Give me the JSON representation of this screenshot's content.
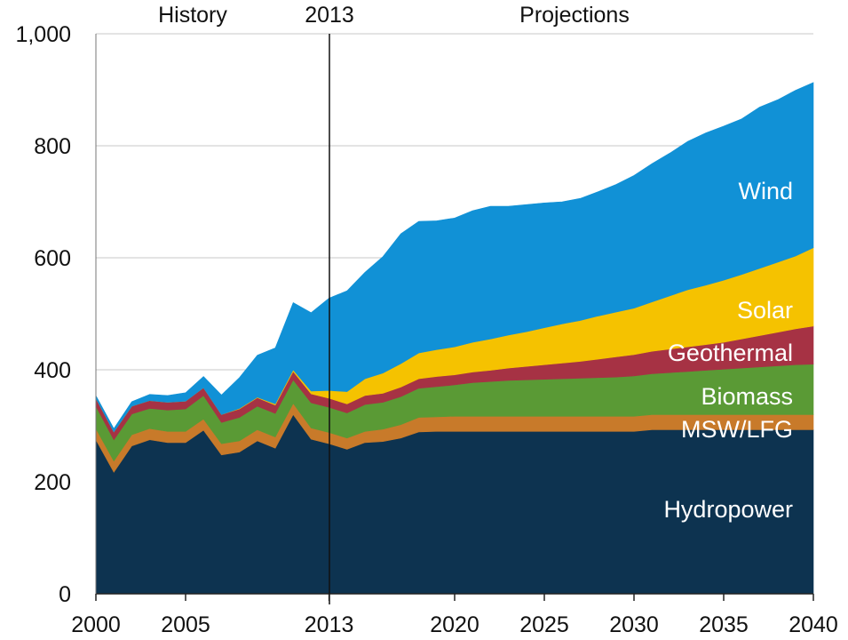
{
  "chart_data": {
    "type": "area",
    "stacked": true,
    "x": [
      2000,
      2001,
      2002,
      2003,
      2004,
      2005,
      2006,
      2007,
      2008,
      2009,
      2010,
      2011,
      2012,
      2013,
      2014,
      2015,
      2016,
      2017,
      2018,
      2019,
      2020,
      2021,
      2022,
      2023,
      2024,
      2025,
      2026,
      2027,
      2028,
      2029,
      2030,
      2031,
      2032,
      2033,
      2034,
      2035,
      2036,
      2037,
      2038,
      2039,
      2040
    ],
    "series": [
      {
        "name": "Hydropower",
        "color": "#0d3350",
        "values": [
          275,
          217,
          264,
          275,
          270,
          270,
          292,
          248,
          253,
          273,
          260,
          320,
          276,
          268,
          258,
          270,
          272,
          278,
          289,
          290,
          290,
          290,
          290,
          290,
          290,
          290,
          290,
          290,
          290,
          290,
          290,
          293,
          293,
          293,
          293,
          293,
          293,
          293,
          293,
          293,
          293
        ]
      },
      {
        "name": "MSW/LFG",
        "color": "#c87a2a",
        "values": [
          20,
          20,
          20,
          20,
          20,
          20,
          20,
          20,
          20,
          20,
          20,
          20,
          20,
          20,
          20,
          20,
          22,
          24,
          26,
          26,
          27,
          27,
          27,
          27,
          27,
          27,
          27,
          27,
          27,
          27,
          27,
          27,
          27,
          27,
          27,
          27,
          27,
          27,
          27,
          27,
          27
        ]
      },
      {
        "name": "Biomass",
        "color": "#5a9a35",
        "values": [
          40,
          38,
          37,
          36,
          38,
          40,
          42,
          38,
          42,
          42,
          42,
          42,
          45,
          45,
          45,
          48,
          48,
          50,
          52,
          54,
          56,
          60,
          62,
          64,
          65,
          66,
          67,
          68,
          69,
          70,
          72,
          73,
          75,
          77,
          79,
          81,
          83,
          85,
          87,
          89,
          90
        ]
      },
      {
        "name": "Geothermal",
        "color": "#a63244",
        "values": [
          14,
          14,
          14,
          14,
          14,
          14,
          14,
          14,
          15,
          15,
          15,
          15,
          16,
          16,
          16,
          16,
          16,
          17,
          17,
          18,
          18,
          19,
          20,
          22,
          24,
          26,
          28,
          30,
          33,
          36,
          38,
          40,
          42,
          44,
          46,
          48,
          52,
          56,
          60,
          64,
          68
        ]
      },
      {
        "name": "Solar",
        "color": "#f5c200",
        "values": [
          0,
          0,
          0,
          0,
          0,
          0,
          0,
          0,
          1,
          1,
          2,
          3,
          5,
          14,
          22,
          30,
          36,
          42,
          46,
          48,
          50,
          53,
          56,
          59,
          62,
          66,
          70,
          73,
          77,
          80,
          83,
          88,
          95,
          102,
          106,
          111,
          115,
          120,
          125,
          130,
          140
        ]
      },
      {
        "name": "Wind",
        "color": "#1191d6",
        "values": [
          5,
          6,
          8,
          11,
          12,
          15,
          20,
          35,
          55,
          75,
          100,
          120,
          140,
          165,
          180,
          190,
          208,
          232,
          235,
          230,
          230,
          235,
          237,
          230,
          227,
          223,
          218,
          218,
          222,
          228,
          237,
          247,
          255,
          265,
          272,
          275,
          278,
          288,
          290,
          296,
          295
        ]
      }
    ],
    "ylim": [
      0,
      1000
    ],
    "yticks": [
      "0",
      "200",
      "400",
      "600",
      "800",
      "1,000"
    ],
    "xticks": [
      "2000",
      "2005",
      "2013",
      "2020",
      "2025",
      "2030",
      "2035",
      "2040"
    ],
    "annotations": [
      "History",
      "2013",
      "Projections"
    ],
    "grid": true
  }
}
